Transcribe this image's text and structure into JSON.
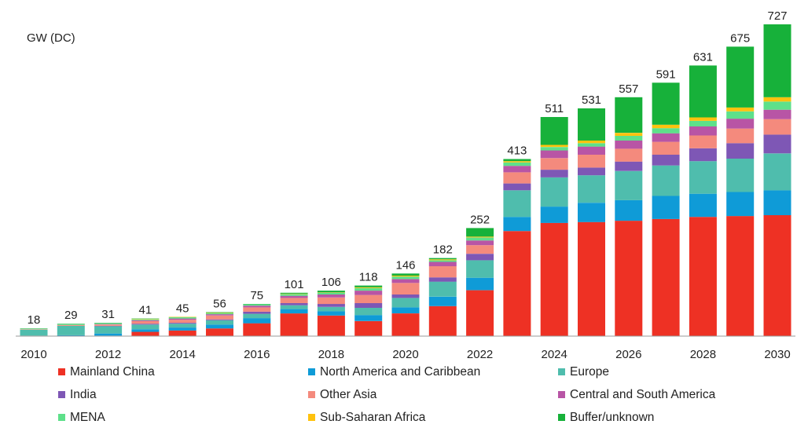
{
  "chart_data": {
    "type": "bar",
    "stacked": true,
    "ylabel": "GW (DC)",
    "categories": [
      "2010",
      "2011",
      "2012",
      "2013",
      "2014",
      "2015",
      "2016",
      "2017",
      "2018",
      "2019",
      "2020",
      "2021",
      "2022",
      "2023",
      "2024",
      "2025",
      "2026",
      "2027",
      "2028",
      "2029",
      "2030"
    ],
    "x_tick_labels": [
      "2010",
      "",
      "2012",
      "",
      "2014",
      "",
      "2016",
      "",
      "2018",
      "",
      "2020",
      "",
      "2022",
      "",
      "2024",
      "",
      "2026",
      "",
      "2028",
      "",
      "2030"
    ],
    "totals": [
      18,
      29,
      31,
      41,
      45,
      56,
      75,
      101,
      106,
      118,
      146,
      182,
      252,
      413,
      511,
      531,
      557,
      591,
      631,
      675,
      727
    ],
    "ylim": [
      0,
      727
    ],
    "legend_position": "bottom",
    "series": [
      {
        "name": "Mainland China",
        "color": "#ee3124",
        "values": [
          0,
          0,
          1,
          10,
          13,
          18,
          30,
          53,
          48,
          35,
          53,
          70,
          107,
          245,
          264,
          266,
          269,
          273,
          278,
          280,
          282
        ]
      },
      {
        "name": "North America and Caribbean",
        "color": "#0f9bd7",
        "values": [
          1,
          2,
          5,
          6,
          7,
          9,
          12,
          10,
          10,
          14,
          14,
          22,
          29,
          33,
          38,
          45,
          48,
          54,
          54,
          56,
          58
        ]
      },
      {
        "name": "Europe",
        "color": "#4fbdad",
        "values": [
          14,
          22,
          17,
          11,
          9,
          10,
          10,
          9,
          10,
          17,
          22,
          35,
          41,
          62,
          68,
          64,
          68,
          71,
          76,
          78,
          86
        ]
      },
      {
        "name": "India",
        "color": "#7e57b5",
        "values": [
          0,
          0,
          1,
          2,
          2,
          2,
          5,
          5,
          7,
          11,
          8,
          10,
          15,
          16,
          18,
          18,
          22,
          25,
          30,
          36,
          44
        ]
      },
      {
        "name": "Other Asia",
        "color": "#f48a7d",
        "values": [
          1,
          2,
          3,
          6,
          7,
          9,
          10,
          12,
          15,
          19,
          27,
          26,
          20,
          26,
          27,
          30,
          30,
          30,
          30,
          34,
          36
        ]
      },
      {
        "name": "Central and South America",
        "color": "#b855a5",
        "values": [
          0,
          0,
          1,
          2,
          3,
          3,
          4,
          5,
          7,
          10,
          9,
          10,
          11,
          15,
          18,
          19,
          19,
          20,
          21,
          23,
          22
        ]
      },
      {
        "name": "MENA",
        "color": "#5ee08a",
        "values": [
          1,
          2,
          2,
          2,
          3,
          3,
          3,
          4,
          4,
          6,
          6,
          4,
          7,
          8,
          8,
          8,
          11,
          12,
          13,
          17,
          19
        ]
      },
      {
        "name": "Sub-Saharan Africa",
        "color": "#ffc20e",
        "values": [
          0,
          0,
          0,
          1,
          1,
          1,
          0,
          1,
          1,
          2,
          2,
          2,
          2,
          3,
          5,
          6,
          7,
          8,
          8,
          9,
          10
        ]
      },
      {
        "name": "Buffer/unknown",
        "color": "#17b13a",
        "values": [
          1,
          1,
          1,
          1,
          0,
          1,
          1,
          2,
          4,
          4,
          5,
          3,
          20,
          5,
          65,
          75,
          83,
          98,
          121,
          142,
          170
        ]
      }
    ]
  }
}
